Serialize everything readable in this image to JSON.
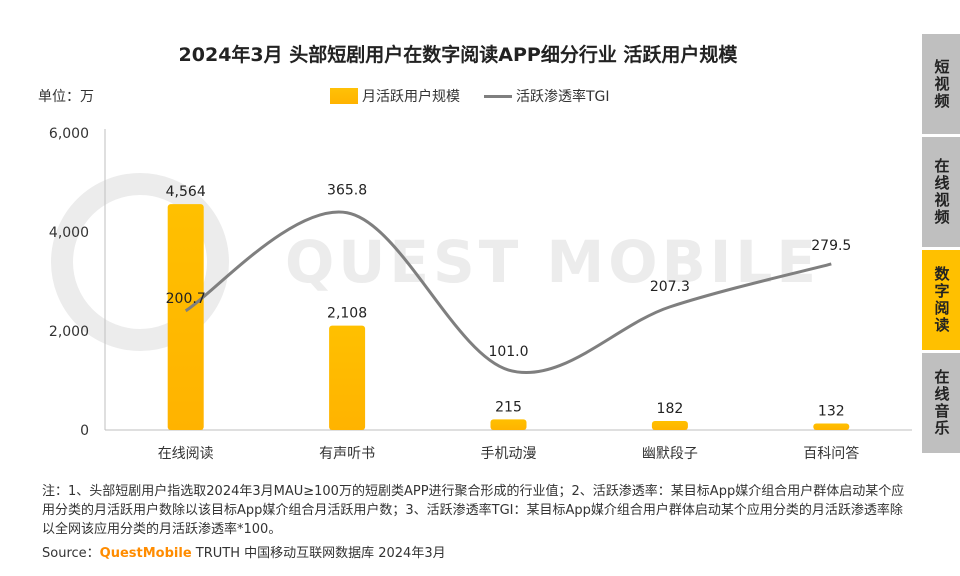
{
  "chart_data": {
    "type": "bar+line",
    "title": "2024年3月 头部短剧用户在数字阅读APP细分行业 活跃用户规模",
    "unit_label": "单位：万",
    "categories": [
      "在线阅读",
      "有声听书",
      "手机动漫",
      "幽默段子",
      "百科问答"
    ],
    "series": [
      {
        "name": "月活跃用户规模",
        "type": "bar",
        "values": [
          4564,
          2108,
          215,
          182,
          132
        ],
        "labels": [
          "4,564",
          "2,108",
          "215",
          "182",
          "132"
        ]
      },
      {
        "name": "活跃渗透率TGI",
        "type": "line",
        "values": [
          200.7,
          365.8,
          101.0,
          207.3,
          279.5
        ],
        "labels": [
          "200.7",
          "365.8",
          "101.0",
          "207.3",
          "279.5"
        ]
      }
    ],
    "y_axis": {
      "ticks": [
        "6,000",
        "4,000",
        "2,000",
        "0"
      ],
      "tick_values": [
        6000,
        4000,
        2000,
        0
      ],
      "ylim": [
        0,
        6000
      ]
    },
    "secondary_ylim": [
      0,
      500
    ],
    "colors": {
      "bar_top": "#ffc000",
      "bar_bottom": "#ffb300",
      "line": "#7f7f7f",
      "watermark": "#ececec"
    }
  },
  "watermark": "QUEST MOBILE",
  "side_tabs": [
    {
      "label": "短视频",
      "active": false
    },
    {
      "label": "在线视频",
      "active": false
    },
    {
      "label": "数字阅读",
      "active": true
    },
    {
      "label": "在线音乐",
      "active": false
    }
  ],
  "note": "注：1、头部短剧用户指选取2024年3月MAU≥100万的短剧类APP进行聚合形成的行业值；2、活跃渗透率：某目标App媒介组合用户群体启动某个应用分类的月活跃用户数除以该目标App媒介组合月活跃用户数；3、活跃渗透率TGI：某目标App媒介组合用户群体启动某个应用分类的月活跃渗透率除以全网该应用分类的月活跃渗透率*100。",
  "source": {
    "prefix": "Source：",
    "brand": "QuestMobile",
    "suffix": " TRUTH 中国移动互联网数据库 2024年3月"
  }
}
